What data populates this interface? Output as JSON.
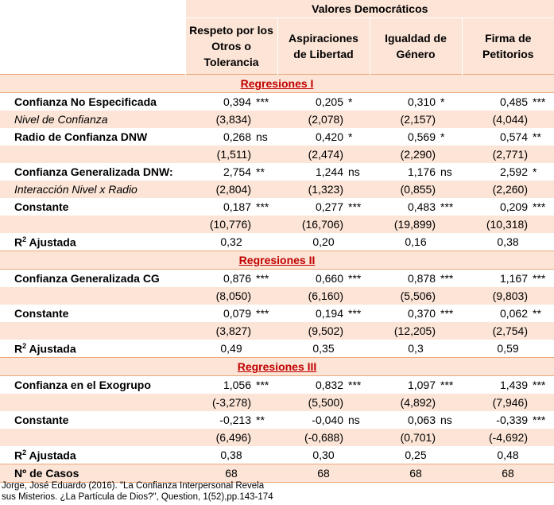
{
  "header": {
    "group_title": "Valores Democráticos",
    "columns": [
      {
        "lines": [
          "Respeto por los",
          "Otros o",
          "Tolerancia"
        ]
      },
      {
        "lines": [
          "Aspiraciones",
          "de Libertad"
        ]
      },
      {
        "lines": [
          "Igualdad de",
          "Género"
        ]
      },
      {
        "lines": [
          "Firma de",
          "Petitorios"
        ]
      }
    ]
  },
  "sections": {
    "s1": "Regresiones I",
    "s2": "Regresiones II",
    "s3": "Regresiones III"
  },
  "rows": {
    "r1": {
      "label": "Confianza No Especificada",
      "cells": [
        [
          "0,394",
          "***"
        ],
        [
          "0,205",
          "*"
        ],
        [
          "0,310",
          "*"
        ],
        [
          "0,485",
          "***"
        ]
      ]
    },
    "r2": {
      "label": "Nivel de Confianza",
      "cells": [
        [
          "(3,834)",
          ""
        ],
        [
          "(2,078)",
          ""
        ],
        [
          "(2,157)",
          ""
        ],
        [
          "(4,044)",
          ""
        ]
      ]
    },
    "r3": {
      "label": "Radio de Confianza DNW",
      "cells": [
        [
          "0,268",
          "ns"
        ],
        [
          "0,420",
          "*"
        ],
        [
          "0,569",
          "*"
        ],
        [
          "0,574",
          "**"
        ]
      ]
    },
    "r4": {
      "label": "",
      "cells": [
        [
          "(1,511)",
          ""
        ],
        [
          "(2,474)",
          ""
        ],
        [
          "(2,290)",
          ""
        ],
        [
          "(2,771)",
          ""
        ]
      ]
    },
    "r5": {
      "label": "Confianza Generalizada DNW:",
      "cells": [
        [
          "2,754",
          "**"
        ],
        [
          "1,244",
          "ns"
        ],
        [
          "1,176",
          "ns"
        ],
        [
          "2,592",
          "*"
        ]
      ]
    },
    "r6": {
      "label": "Interacción Nivel x Radio",
      "cells": [
        [
          "(2,804)",
          ""
        ],
        [
          "(1,323)",
          ""
        ],
        [
          "(0,855)",
          ""
        ],
        [
          "(2,260)",
          ""
        ]
      ]
    },
    "r7": {
      "label": "Constante",
      "cells": [
        [
          "0,187",
          "***"
        ],
        [
          "0,277",
          "***"
        ],
        [
          "0,483",
          "***"
        ],
        [
          "0,209",
          "***"
        ]
      ]
    },
    "r8": {
      "label": "",
      "cells": [
        [
          "(10,776)",
          ""
        ],
        [
          "(16,706)",
          ""
        ],
        [
          "(19,899)",
          ""
        ],
        [
          "(10,318)",
          ""
        ]
      ]
    },
    "r9": {
      "label_main": "R",
      "label_sup": "2",
      "label_rest": " Ajustada",
      "cells": [
        "0,32",
        "0,20",
        "0,16",
        "0,38"
      ]
    },
    "r10": {
      "label": "Confianza Generalizada CG",
      "cells": [
        [
          "0,876",
          "***"
        ],
        [
          "0,660",
          "***"
        ],
        [
          "0,878",
          "***"
        ],
        [
          "1,167",
          "***"
        ]
      ]
    },
    "r11": {
      "label": "",
      "cells": [
        [
          "(8,050)",
          ""
        ],
        [
          "(6,160)",
          ""
        ],
        [
          "(5,506)",
          ""
        ],
        [
          "(9,803)",
          ""
        ]
      ]
    },
    "r12": {
      "label": "Constante",
      "cells": [
        [
          "0,079",
          "***"
        ],
        [
          "0,194",
          "***"
        ],
        [
          "0,370",
          "***"
        ],
        [
          "0,062",
          "**"
        ]
      ]
    },
    "r13": {
      "label": "",
      "cells": [
        [
          "(3,827)",
          ""
        ],
        [
          "(9,502)",
          ""
        ],
        [
          "(12,205)",
          ""
        ],
        [
          "(2,754)",
          ""
        ]
      ]
    },
    "r14": {
      "label_main": "R",
      "label_sup": "2",
      "label_rest": " Ajustada",
      "cells": [
        "0,49",
        "0,35",
        "0,3",
        "0,59"
      ]
    },
    "r15": {
      "label": "Confianza en el Exogrupo",
      "cells": [
        [
          "1,056",
          "***"
        ],
        [
          "0,832",
          "***"
        ],
        [
          "1,097",
          "***"
        ],
        [
          "1,439",
          "***"
        ]
      ]
    },
    "r16": {
      "label": "",
      "cells": [
        [
          "(-3,278)",
          ""
        ],
        [
          "(5,500)",
          ""
        ],
        [
          "(4,892)",
          ""
        ],
        [
          "(7,946)",
          ""
        ]
      ]
    },
    "r17": {
      "label": "Constante",
      "cells": [
        [
          "-0,213",
          "**"
        ],
        [
          "-0,040",
          "ns"
        ],
        [
          "0,063",
          "ns"
        ],
        [
          "-0,339",
          "***"
        ]
      ]
    },
    "r18": {
      "label": "",
      "cells": [
        [
          "(6,496)",
          ""
        ],
        [
          "(-0,688)",
          ""
        ],
        [
          "(0,701)",
          ""
        ],
        [
          "(-4,692)",
          ""
        ]
      ]
    },
    "r19": {
      "label_main": "R",
      "label_sup": "2",
      "label_rest": " Ajustada",
      "cells": [
        "0,38",
        "0,30",
        "0,25",
        "0,48"
      ]
    },
    "r20": {
      "label": "Nº de Casos",
      "cells": [
        "68",
        "68",
        "68",
        "68"
      ]
    }
  },
  "citation": {
    "line1": "Jorge, José Eduardo (2016). \"La Confianza Interpersonal Revela",
    "line2": "sus Misterios. ¿La Partícula de Dios?\", Question, 1(52),pp.143-174"
  }
}
